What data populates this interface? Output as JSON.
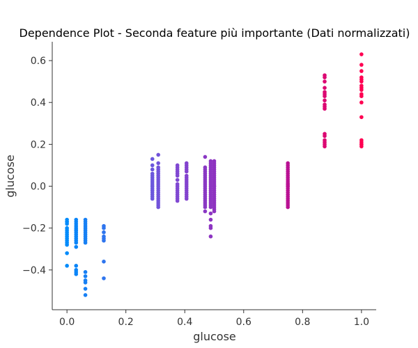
{
  "chart_data": {
    "type": "scatter",
    "title": "Dependence Plot - Seconda feature più importante (Dati normalizzati)",
    "xlabel": "glucose",
    "ylabel": "glucose",
    "xlim": [
      -0.05,
      1.05
    ],
    "ylim": [
      -0.59,
      0.69
    ],
    "x_ticks": [
      0.0,
      0.2,
      0.4,
      0.6,
      0.8,
      1.0
    ],
    "x_tick_labels": [
      "0.0",
      "0.2",
      "0.4",
      "0.6",
      "0.8",
      "1.0"
    ],
    "y_ticks": [
      -0.4,
      -0.2,
      0.0,
      0.2,
      0.4,
      0.6
    ],
    "y_tick_labels": [
      "−0.4",
      "−0.2",
      "0.0",
      "0.2",
      "0.4",
      "0.6"
    ],
    "grid": false,
    "color_scale": [
      "#008bfb",
      "#7b4fd8",
      "#a116a8",
      "#ff0052"
    ],
    "point_color": "#1e88e5",
    "x": [
      0.0,
      0.0,
      0.0,
      0.0,
      0.0,
      0.0,
      0.0,
      0.0,
      0.0,
      0.0,
      0.0,
      0.0,
      0.0,
      0.0,
      0.0,
      0.031,
      0.031,
      0.031,
      0.031,
      0.031,
      0.031,
      0.031,
      0.031,
      0.031,
      0.031,
      0.031,
      0.031,
      0.031,
      0.031,
      0.031,
      0.031,
      0.031,
      0.031,
      0.0625,
      0.0625,
      0.0625,
      0.0625,
      0.0625,
      0.0625,
      0.0625,
      0.0625,
      0.0625,
      0.0625,
      0.0625,
      0.0625,
      0.0625,
      0.0625,
      0.0625,
      0.0625,
      0.0625,
      0.0625,
      0.125,
      0.125,
      0.125,
      0.125,
      0.125,
      0.125,
      0.125,
      0.125,
      0.29,
      0.29,
      0.29,
      0.29,
      0.29,
      0.29,
      0.29,
      0.29,
      0.29,
      0.29,
      0.29,
      0.29,
      0.29,
      0.29,
      0.29,
      0.29,
      0.29,
      0.29,
      0.31,
      0.31,
      0.31,
      0.31,
      0.31,
      0.31,
      0.31,
      0.31,
      0.31,
      0.31,
      0.31,
      0.31,
      0.31,
      0.31,
      0.31,
      0.31,
      0.31,
      0.31,
      0.31,
      0.31,
      0.31,
      0.31,
      0.375,
      0.375,
      0.375,
      0.375,
      0.375,
      0.375,
      0.375,
      0.375,
      0.375,
      0.375,
      0.375,
      0.375,
      0.375,
      0.375,
      0.375,
      0.375,
      0.406,
      0.406,
      0.406,
      0.406,
      0.406,
      0.406,
      0.406,
      0.406,
      0.406,
      0.406,
      0.406,
      0.406,
      0.406,
      0.406,
      0.406,
      0.406,
      0.406,
      0.469,
      0.469,
      0.469,
      0.469,
      0.469,
      0.469,
      0.469,
      0.469,
      0.469,
      0.469,
      0.469,
      0.469,
      0.469,
      0.469,
      0.469,
      0.469,
      0.469,
      0.469,
      0.469,
      0.469,
      0.469,
      0.469,
      0.488,
      0.488,
      0.488,
      0.488,
      0.488,
      0.488,
      0.488,
      0.488,
      0.488,
      0.488,
      0.488,
      0.488,
      0.488,
      0.488,
      0.488,
      0.488,
      0.488,
      0.488,
      0.488,
      0.488,
      0.488,
      0.488,
      0.488,
      0.488,
      0.488,
      0.488,
      0.488,
      0.488,
      0.5,
      0.5,
      0.5,
      0.5,
      0.5,
      0.5,
      0.5,
      0.5,
      0.5,
      0.5,
      0.5,
      0.5,
      0.5,
      0.5,
      0.5,
      0.5,
      0.5,
      0.5,
      0.5,
      0.5,
      0.5,
      0.5,
      0.5,
      0.5,
      0.5,
      0.5,
      0.75,
      0.75,
      0.75,
      0.75,
      0.75,
      0.75,
      0.75,
      0.75,
      0.75,
      0.75,
      0.75,
      0.75,
      0.75,
      0.75,
      0.75,
      0.75,
      0.75,
      0.75,
      0.75,
      0.75,
      0.75,
      0.75,
      0.75,
      0.75,
      0.875,
      0.875,
      0.875,
      0.875,
      0.875,
      0.875,
      0.875,
      0.875,
      0.875,
      0.875,
      0.875,
      0.875,
      0.875,
      0.875,
      0.875,
      0.875,
      0.875,
      1.0,
      1.0,
      1.0,
      1.0,
      1.0,
      1.0,
      1.0,
      1.0,
      1.0,
      1.0,
      1.0,
      1.0,
      1.0,
      1.0,
      1.0,
      1.0,
      1.0,
      1.0
    ],
    "y": [
      -0.16,
      -0.17,
      -0.18,
      -0.2,
      -0.21,
      -0.22,
      -0.23,
      -0.24,
      -0.25,
      -0.26,
      -0.27,
      -0.28,
      -0.32,
      -0.38,
      -0.17,
      -0.16,
      -0.17,
      -0.18,
      -0.19,
      -0.2,
      -0.21,
      -0.22,
      -0.23,
      -0.24,
      -0.25,
      -0.26,
      -0.27,
      -0.29,
      -0.38,
      -0.4,
      -0.41,
      -0.42,
      -0.21,
      -0.16,
      -0.17,
      -0.19,
      -0.2,
      -0.21,
      -0.22,
      -0.23,
      -0.24,
      -0.25,
      -0.26,
      -0.27,
      -0.41,
      -0.43,
      -0.45,
      -0.46,
      -0.49,
      -0.52,
      -0.18,
      -0.19,
      -0.2,
      -0.22,
      -0.24,
      -0.25,
      -0.26,
      -0.36,
      -0.44,
      0.13,
      0.08,
      0.06,
      0.04,
      0.03,
      0.02,
      0.01,
      0.0,
      -0.01,
      -0.02,
      -0.03,
      -0.04,
      -0.05,
      -0.06,
      0.05,
      -0.02,
      0.1,
      -0.0,
      0.15,
      0.11,
      0.09,
      0.08,
      0.07,
      0.06,
      0.05,
      0.04,
      0.03,
      0.02,
      0.01,
      0.0,
      -0.01,
      -0.02,
      -0.03,
      -0.04,
      -0.05,
      -0.06,
      -0.07,
      -0.08,
      -0.09,
      -0.1,
      0.1,
      0.09,
      0.08,
      0.07,
      0.06,
      0.05,
      0.03,
      0.01,
      0.0,
      -0.01,
      -0.02,
      -0.03,
      -0.04,
      -0.05,
      -0.06,
      -0.07,
      0.11,
      0.1,
      0.09,
      0.08,
      0.07,
      0.05,
      0.04,
      0.03,
      0.02,
      0.01,
      0.0,
      -0.01,
      -0.02,
      -0.03,
      -0.04,
      -0.05,
      -0.06,
      0.14,
      0.09,
      0.08,
      0.07,
      0.06,
      0.05,
      0.04,
      0.03,
      0.02,
      0.01,
      0.0,
      -0.01,
      -0.02,
      -0.03,
      -0.04,
      -0.05,
      -0.06,
      -0.07,
      -0.08,
      -0.09,
      -0.1,
      -0.12,
      0.12,
      0.11,
      0.1,
      0.09,
      0.08,
      0.07,
      0.06,
      0.05,
      0.04,
      0.03,
      0.02,
      0.01,
      0.0,
      -0.01,
      -0.02,
      -0.03,
      -0.04,
      -0.05,
      -0.06,
      -0.07,
      -0.08,
      -0.09,
      -0.1,
      -0.13,
      -0.16,
      -0.19,
      -0.2,
      -0.24,
      0.12,
      0.1,
      0.08,
      0.06,
      0.04,
      0.02,
      0.0,
      -0.02,
      -0.04,
      -0.06,
      -0.08,
      -0.1,
      0.11,
      0.09,
      0.07,
      0.05,
      0.03,
      0.01,
      -0.01,
      -0.03,
      -0.05,
      -0.07,
      -0.09,
      -0.11,
      -0.12,
      0.0,
      0.11,
      0.1,
      0.09,
      0.08,
      0.07,
      0.06,
      0.05,
      0.04,
      0.03,
      0.02,
      0.01,
      0.0,
      -0.01,
      -0.02,
      -0.03,
      -0.04,
      -0.05,
      -0.06,
      -0.07,
      -0.08,
      -0.09,
      -0.1,
      0.0,
      0.01,
      0.53,
      0.52,
      0.5,
      0.47,
      0.45,
      0.44,
      0.43,
      0.41,
      0.39,
      0.37,
      0.25,
      0.24,
      0.22,
      0.21,
      0.2,
      0.19,
      0.38,
      0.63,
      0.58,
      0.55,
      0.51,
      0.5,
      0.48,
      0.46,
      0.44,
      0.43,
      0.4,
      0.33,
      0.22,
      0.21,
      0.2,
      0.2,
      0.19,
      0.47,
      0.52
    ]
  }
}
